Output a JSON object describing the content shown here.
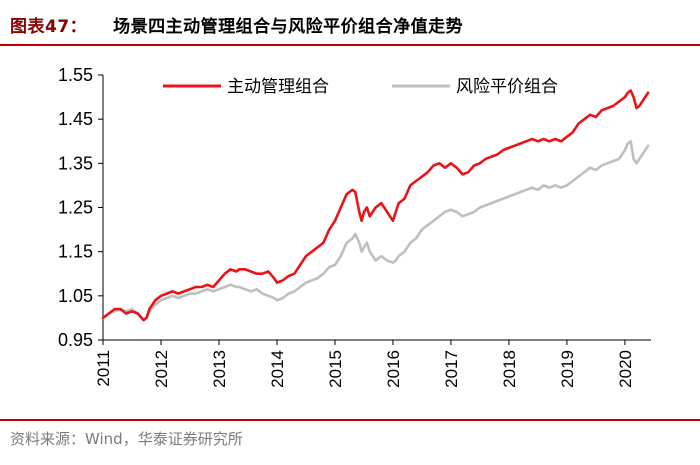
{
  "figure": {
    "number": "图表47：",
    "title": "场景四主动管理组合与风险平价组合净值走势",
    "source": "资料来源：Wind，华泰证券研究所",
    "accent_color": "#c00000"
  },
  "chart_data": {
    "type": "line",
    "x_axis_type": "year",
    "xlim": [
      2011.0,
      2020.45
    ],
    "ylim": [
      0.95,
      1.55
    ],
    "yticks": [
      0.95,
      1.05,
      1.15,
      1.25,
      1.35,
      1.45,
      1.55
    ],
    "ytick_labels": [
      "0.95",
      "1.05",
      "1.15",
      "1.25",
      "1.35",
      "1.45",
      "1.55"
    ],
    "xticks": [
      2011,
      2012,
      2013,
      2014,
      2015,
      2016,
      2017,
      2018,
      2019,
      2020
    ],
    "xtick_labels": [
      "2011",
      "2012",
      "2013",
      "2014",
      "2015",
      "2016",
      "2017",
      "2018",
      "2019",
      "2020"
    ],
    "grid": false,
    "legend_position": "top",
    "series": [
      {
        "name": "主动管理组合",
        "color": "#e8141a",
        "x": [
          2011.0,
          2011.1,
          2011.2,
          2011.3,
          2011.4,
          2011.5,
          2011.6,
          2011.7,
          2011.75,
          2011.8,
          2011.9,
          2012.0,
          2012.1,
          2012.2,
          2012.3,
          2012.4,
          2012.5,
          2012.6,
          2012.7,
          2012.8,
          2012.9,
          2013.0,
          2013.1,
          2013.2,
          2013.3,
          2013.35,
          2013.45,
          2013.55,
          2013.65,
          2013.75,
          2013.85,
          2013.95,
          2014.0,
          2014.1,
          2014.2,
          2014.3,
          2014.4,
          2014.5,
          2014.6,
          2014.7,
          2014.8,
          2014.9,
          2015.0,
          2015.1,
          2015.2,
          2015.3,
          2015.35,
          2015.42,
          2015.46,
          2015.5,
          2015.55,
          2015.6,
          2015.65,
          2015.7,
          2015.8,
          2015.9,
          2016.0,
          2016.05,
          2016.1,
          2016.2,
          2016.3,
          2016.4,
          2016.5,
          2016.6,
          2016.7,
          2016.8,
          2016.9,
          2017.0,
          2017.1,
          2017.2,
          2017.3,
          2017.4,
          2017.5,
          2017.6,
          2017.7,
          2017.8,
          2017.9,
          2018.0,
          2018.1,
          2018.2,
          2018.3,
          2018.4,
          2018.5,
          2018.6,
          2018.7,
          2018.8,
          2018.9,
          2019.0,
          2019.1,
          2019.2,
          2019.3,
          2019.4,
          2019.5,
          2019.6,
          2019.7,
          2019.8,
          2019.9,
          2020.0,
          2020.05,
          2020.1,
          2020.15,
          2020.2,
          2020.25,
          2020.3,
          2020.35,
          2020.4
        ],
        "y": [
          1.0,
          1.01,
          1.02,
          1.02,
          1.01,
          1.015,
          1.01,
          0.995,
          1.0,
          1.02,
          1.04,
          1.05,
          1.055,
          1.06,
          1.055,
          1.06,
          1.065,
          1.07,
          1.07,
          1.075,
          1.07,
          1.085,
          1.1,
          1.11,
          1.105,
          1.11,
          1.11,
          1.105,
          1.1,
          1.1,
          1.105,
          1.09,
          1.08,
          1.085,
          1.095,
          1.1,
          1.12,
          1.14,
          1.15,
          1.16,
          1.17,
          1.2,
          1.22,
          1.25,
          1.28,
          1.29,
          1.285,
          1.24,
          1.22,
          1.24,
          1.25,
          1.23,
          1.24,
          1.25,
          1.26,
          1.24,
          1.22,
          1.24,
          1.26,
          1.27,
          1.3,
          1.31,
          1.32,
          1.33,
          1.345,
          1.35,
          1.34,
          1.35,
          1.34,
          1.325,
          1.33,
          1.345,
          1.35,
          1.36,
          1.365,
          1.37,
          1.38,
          1.385,
          1.39,
          1.395,
          1.4,
          1.405,
          1.4,
          1.405,
          1.4,
          1.405,
          1.4,
          1.41,
          1.42,
          1.44,
          1.45,
          1.46,
          1.455,
          1.47,
          1.475,
          1.48,
          1.49,
          1.5,
          1.51,
          1.515,
          1.5,
          1.475,
          1.48,
          1.49,
          1.5,
          1.51
        ]
      },
      {
        "name": "风险平价组合",
        "color": "#bfbfbf",
        "x": [
          2011.0,
          2011.1,
          2011.2,
          2011.3,
          2011.4,
          2011.5,
          2011.6,
          2011.7,
          2011.75,
          2011.8,
          2011.9,
          2012.0,
          2012.1,
          2012.2,
          2012.3,
          2012.4,
          2012.5,
          2012.6,
          2012.7,
          2012.8,
          2012.9,
          2013.0,
          2013.1,
          2013.2,
          2013.3,
          2013.35,
          2013.45,
          2013.55,
          2013.65,
          2013.75,
          2013.85,
          2013.95,
          2014.0,
          2014.1,
          2014.2,
          2014.3,
          2014.4,
          2014.5,
          2014.6,
          2014.7,
          2014.8,
          2014.9,
          2015.0,
          2015.1,
          2015.2,
          2015.3,
          2015.35,
          2015.42,
          2015.46,
          2015.5,
          2015.55,
          2015.6,
          2015.65,
          2015.7,
          2015.8,
          2015.9,
          2016.0,
          2016.05,
          2016.1,
          2016.2,
          2016.3,
          2016.4,
          2016.5,
          2016.6,
          2016.7,
          2016.8,
          2016.9,
          2017.0,
          2017.1,
          2017.2,
          2017.3,
          2017.4,
          2017.5,
          2017.6,
          2017.7,
          2017.8,
          2017.9,
          2018.0,
          2018.1,
          2018.2,
          2018.3,
          2018.4,
          2018.5,
          2018.6,
          2018.7,
          2018.8,
          2018.9,
          2019.0,
          2019.1,
          2019.2,
          2019.3,
          2019.4,
          2019.5,
          2019.6,
          2019.7,
          2019.8,
          2019.9,
          2020.0,
          2020.05,
          2020.1,
          2020.15,
          2020.2,
          2020.25,
          2020.3,
          2020.35,
          2020.4
        ],
        "y": [
          1.0,
          1.01,
          1.015,
          1.02,
          1.015,
          1.02,
          1.01,
          0.995,
          1.0,
          1.015,
          1.03,
          1.04,
          1.045,
          1.05,
          1.045,
          1.05,
          1.055,
          1.055,
          1.06,
          1.065,
          1.06,
          1.065,
          1.07,
          1.075,
          1.07,
          1.07,
          1.065,
          1.06,
          1.065,
          1.055,
          1.05,
          1.045,
          1.04,
          1.045,
          1.055,
          1.06,
          1.07,
          1.08,
          1.085,
          1.09,
          1.1,
          1.115,
          1.12,
          1.14,
          1.17,
          1.18,
          1.19,
          1.17,
          1.15,
          1.16,
          1.17,
          1.15,
          1.14,
          1.13,
          1.14,
          1.13,
          1.125,
          1.13,
          1.14,
          1.15,
          1.17,
          1.18,
          1.2,
          1.21,
          1.22,
          1.23,
          1.24,
          1.245,
          1.24,
          1.23,
          1.235,
          1.24,
          1.25,
          1.255,
          1.26,
          1.265,
          1.27,
          1.275,
          1.28,
          1.285,
          1.29,
          1.295,
          1.29,
          1.3,
          1.295,
          1.3,
          1.295,
          1.3,
          1.31,
          1.32,
          1.33,
          1.34,
          1.335,
          1.345,
          1.35,
          1.355,
          1.36,
          1.38,
          1.395,
          1.4,
          1.36,
          1.35,
          1.36,
          1.37,
          1.38,
          1.39
        ]
      }
    ]
  }
}
